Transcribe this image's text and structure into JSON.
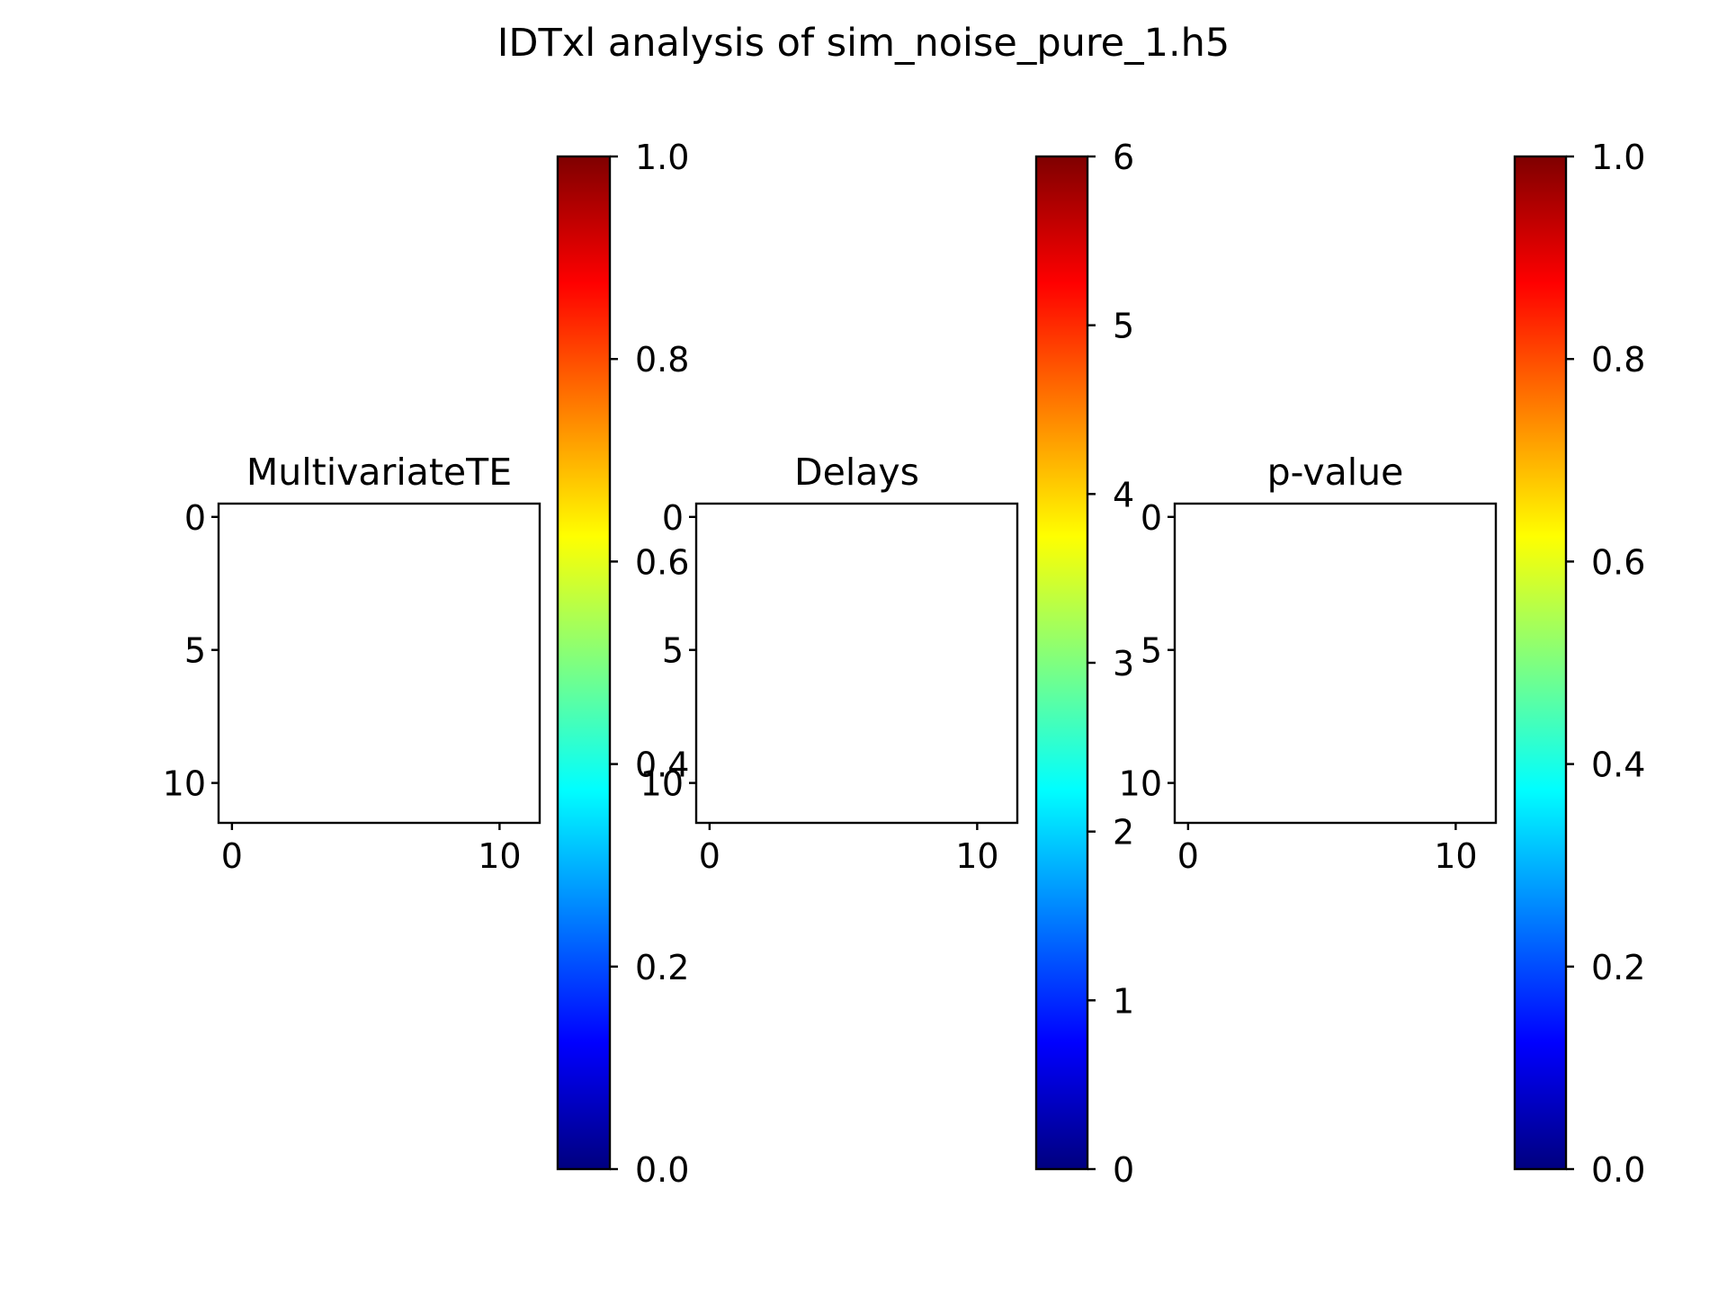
{
  "figure": {
    "title": "IDTxl analysis of sim_noise_pure_1.h5"
  },
  "colormap": {
    "name": "jet",
    "stops": [
      "#00007f",
      "#0000ff",
      "#007fff",
      "#00ffff",
      "#7fff7f",
      "#ffff00",
      "#ff7f00",
      "#ff0000",
      "#7f0000"
    ]
  },
  "chart_data": [
    {
      "type": "heatmap",
      "title": "MultivariateTE",
      "matrix": [],
      "xticks": [
        "0",
        "10"
      ],
      "yticks": [
        "0",
        "5",
        "10"
      ],
      "xlim": [
        -0.5,
        11.5
      ],
      "ylim": [
        11.5,
        -0.5
      ],
      "colorbar": {
        "vmin": 0.0,
        "vmax": 1.0,
        "ticks": [
          "0.0",
          "0.2",
          "0.4",
          "0.6",
          "0.8",
          "1.0"
        ]
      }
    },
    {
      "type": "heatmap",
      "title": "Delays",
      "matrix": [],
      "xticks": [
        "0",
        "10"
      ],
      "yticks": [
        "0",
        "5",
        "10"
      ],
      "xlim": [
        -0.5,
        11.5
      ],
      "ylim": [
        11.5,
        -0.5
      ],
      "colorbar": {
        "vmin": 0,
        "vmax": 6,
        "ticks": [
          "0",
          "1",
          "2",
          "3",
          "4",
          "5",
          "6"
        ]
      }
    },
    {
      "type": "heatmap",
      "title": "p-value",
      "matrix": [],
      "xticks": [
        "0",
        "10"
      ],
      "yticks": [
        "0",
        "5",
        "10"
      ],
      "xlim": [
        -0.5,
        11.5
      ],
      "ylim": [
        11.5,
        -0.5
      ],
      "colorbar": {
        "vmin": 0.0,
        "vmax": 1.0,
        "ticks": [
          "0.0",
          "0.2",
          "0.4",
          "0.6",
          "0.8",
          "1.0"
        ]
      }
    }
  ]
}
